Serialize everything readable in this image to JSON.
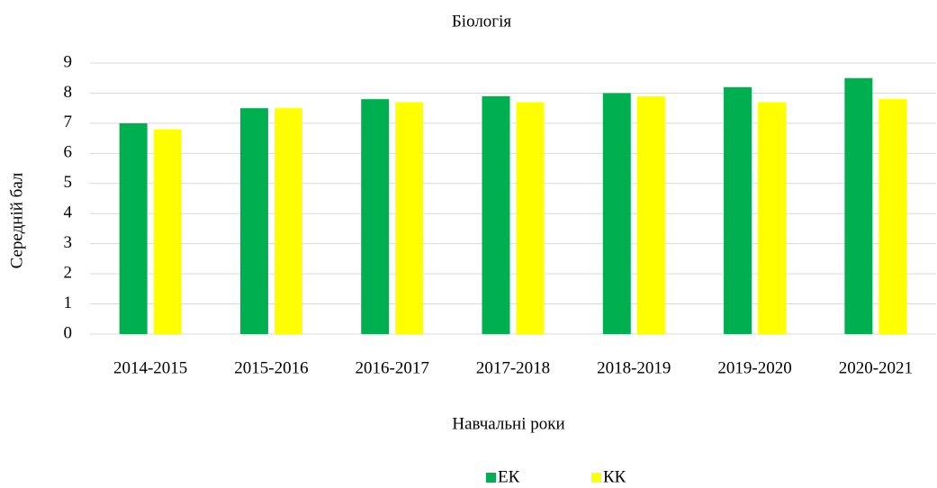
{
  "chart_data": {
    "type": "bar",
    "title": "Біологія",
    "x_label": "Навчальні роки",
    "y_label": "Середній бал",
    "categories": [
      "2014-2015",
      "2015-2016",
      "2016-2017",
      "2017-2018",
      "2018-2019",
      "2019-2020",
      "2020-2021"
    ],
    "series": [
      {
        "name": "ЕК",
        "color": "#00b050",
        "values": [
          7.0,
          7.5,
          7.8,
          7.9,
          8.0,
          8.2,
          8.5
        ]
      },
      {
        "name": "КК",
        "color": "#ffff00",
        "values": [
          6.8,
          7.5,
          7.7,
          7.7,
          7.9,
          7.7,
          7.8
        ]
      }
    ],
    "ylim": [
      0,
      9
    ],
    "yticks": [
      0,
      1,
      2,
      3,
      4,
      5,
      6,
      7,
      8,
      9
    ],
    "grid": true,
    "legend": "bottom"
  }
}
